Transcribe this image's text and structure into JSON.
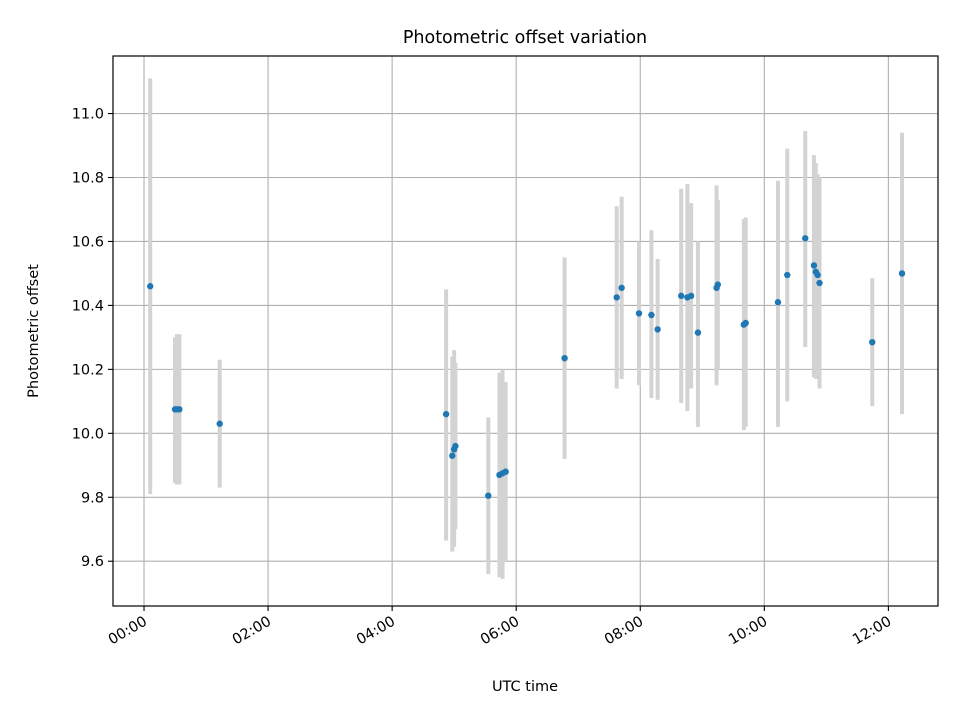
{
  "chart_data": {
    "type": "scatter",
    "title": "Photometric offset variation",
    "xlabel": "UTC time",
    "ylabel": "Photometric offset",
    "x_unit": "hours (UTC)",
    "xlim": [
      -0.5,
      12.8
    ],
    "ylim": [
      9.46,
      11.18
    ],
    "x_ticks": [
      0,
      2,
      4,
      6,
      8,
      10,
      12
    ],
    "x_tick_labels": [
      "00:00",
      "02:00",
      "04:00",
      "06:00",
      "08:00",
      "10:00",
      "12:00"
    ],
    "y_ticks": [
      9.6,
      9.8,
      10.0,
      10.2,
      10.4,
      10.6,
      10.8,
      11.0
    ],
    "y_tick_labels": [
      "9.6",
      "9.8",
      "10.0",
      "10.2",
      "10.4",
      "10.6",
      "10.8",
      "11.0"
    ],
    "grid": true,
    "colors": {
      "point": "#1f77b4",
      "errorbar": "#d3d3d3",
      "grid": "#b0b0b0"
    },
    "series": [
      {
        "points": [
          {
            "time": "00:06",
            "x": 0.1,
            "y": 10.46,
            "ylow": 9.81,
            "yhigh": 11.11
          },
          {
            "time": "00:30",
            "x": 0.5,
            "y": 10.075,
            "ylow": 9.845,
            "yhigh": 10.3
          },
          {
            "time": "00:32",
            "x": 0.53,
            "y": 10.075,
            "ylow": 9.84,
            "yhigh": 10.31
          },
          {
            "time": "00:34",
            "x": 0.57,
            "y": 10.075,
            "ylow": 9.84,
            "yhigh": 10.31
          },
          {
            "time": "01:13",
            "x": 1.22,
            "y": 10.03,
            "ylow": 9.83,
            "yhigh": 10.23
          },
          {
            "time": "04:52",
            "x": 4.87,
            "y": 10.06,
            "ylow": 9.665,
            "yhigh": 10.45
          },
          {
            "time": "04:58",
            "x": 4.97,
            "y": 9.93,
            "ylow": 9.63,
            "yhigh": 10.24
          },
          {
            "time": "05:00",
            "x": 5.0,
            "y": 9.95,
            "ylow": 9.645,
            "yhigh": 10.26
          },
          {
            "time": "05:01",
            "x": 5.02,
            "y": 9.96,
            "ylow": 9.7,
            "yhigh": 10.22
          },
          {
            "time": "05:33",
            "x": 5.55,
            "y": 9.805,
            "ylow": 9.56,
            "yhigh": 10.05
          },
          {
            "time": "05:44",
            "x": 5.73,
            "y": 9.87,
            "ylow": 9.55,
            "yhigh": 10.19
          },
          {
            "time": "05:47",
            "x": 5.78,
            "y": 9.875,
            "ylow": 9.545,
            "yhigh": 10.2
          },
          {
            "time": "05:50",
            "x": 5.83,
            "y": 9.88,
            "ylow": 9.6,
            "yhigh": 10.16
          },
          {
            "time": "06:47",
            "x": 6.78,
            "y": 10.235,
            "ylow": 9.92,
            "yhigh": 10.55
          },
          {
            "time": "07:37",
            "x": 7.62,
            "y": 10.425,
            "ylow": 10.14,
            "yhigh": 10.71
          },
          {
            "time": "07:42",
            "x": 7.7,
            "y": 10.455,
            "ylow": 10.17,
            "yhigh": 10.74
          },
          {
            "time": "07:59",
            "x": 7.98,
            "y": 10.375,
            "ylow": 10.15,
            "yhigh": 10.6
          },
          {
            "time": "08:11",
            "x": 8.18,
            "y": 10.37,
            "ylow": 10.11,
            "yhigh": 10.635
          },
          {
            "time": "08:17",
            "x": 8.28,
            "y": 10.325,
            "ylow": 10.105,
            "yhigh": 10.545
          },
          {
            "time": "08:40",
            "x": 8.66,
            "y": 10.43,
            "ylow": 10.095,
            "yhigh": 10.765
          },
          {
            "time": "08:46",
            "x": 8.76,
            "y": 10.425,
            "ylow": 10.07,
            "yhigh": 10.78
          },
          {
            "time": "08:49",
            "x": 8.82,
            "y": 10.43,
            "ylow": 10.14,
            "yhigh": 10.72
          },
          {
            "time": "08:56",
            "x": 8.93,
            "y": 10.315,
            "ylow": 10.02,
            "yhigh": 10.6
          },
          {
            "time": "09:14",
            "x": 9.23,
            "y": 10.455,
            "ylow": 10.15,
            "yhigh": 10.775
          },
          {
            "time": "09:15",
            "x": 9.25,
            "y": 10.465,
            "ylow": 10.2,
            "yhigh": 10.73
          },
          {
            "time": "09:40",
            "x": 9.67,
            "y": 10.34,
            "ylow": 10.01,
            "yhigh": 10.67
          },
          {
            "time": "09:42",
            "x": 9.7,
            "y": 10.345,
            "ylow": 10.02,
            "yhigh": 10.675
          },
          {
            "time": "10:13",
            "x": 10.22,
            "y": 10.41,
            "ylow": 10.02,
            "yhigh": 10.79
          },
          {
            "time": "10:22",
            "x": 10.37,
            "y": 10.495,
            "ylow": 10.1,
            "yhigh": 10.89
          },
          {
            "time": "10:39",
            "x": 10.66,
            "y": 10.61,
            "ylow": 10.27,
            "yhigh": 10.945
          },
          {
            "time": "10:48",
            "x": 10.8,
            "y": 10.525,
            "ylow": 10.175,
            "yhigh": 10.87
          },
          {
            "time": "10:50",
            "x": 10.83,
            "y": 10.505,
            "ylow": 10.17,
            "yhigh": 10.845
          },
          {
            "time": "10:51",
            "x": 10.86,
            "y": 10.495,
            "ylow": 10.18,
            "yhigh": 10.81
          },
          {
            "time": "10:53",
            "x": 10.89,
            "y": 10.47,
            "ylow": 10.14,
            "yhigh": 10.8
          },
          {
            "time": "11:44",
            "x": 11.74,
            "y": 10.285,
            "ylow": 10.085,
            "yhigh": 10.485
          },
          {
            "time": "12:13",
            "x": 12.22,
            "y": 10.5,
            "ylow": 10.06,
            "yhigh": 10.94
          }
        ]
      }
    ]
  }
}
